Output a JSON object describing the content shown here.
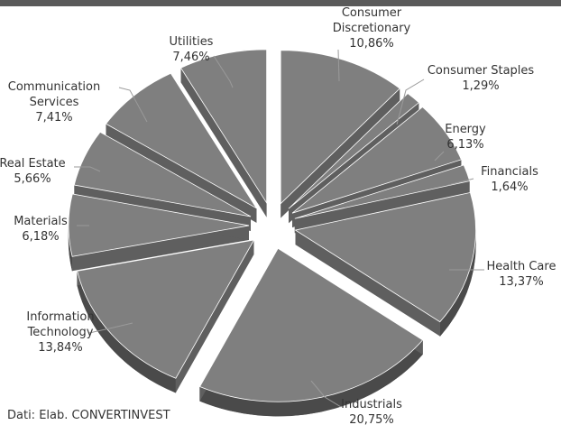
{
  "chart_data": {
    "type": "pie",
    "title": "",
    "decimal_separator": ",",
    "slices": [
      {
        "label": "Consumer Discretionary",
        "value": 10.86,
        "display": "10,86%",
        "label_lines": [
          "Consumer",
          "Discretionary"
        ]
      },
      {
        "label": "Consumer Staples",
        "value": 1.29,
        "display": "1,29%",
        "label_lines": [
          "Consumer Staples"
        ]
      },
      {
        "label": "Energy",
        "value": 6.13,
        "display": "6,13%",
        "label_lines": [
          "Energy"
        ]
      },
      {
        "label": "Financials",
        "value": 1.64,
        "display": "1,64%",
        "label_lines": [
          "Financials"
        ]
      },
      {
        "label": "Health Care",
        "value": 13.37,
        "display": "13,37%",
        "label_lines": [
          "Health Care"
        ]
      },
      {
        "label": "Industrials",
        "value": 20.75,
        "display": "20,75%",
        "label_lines": [
          "Industrials"
        ]
      },
      {
        "label": "Information Technology",
        "value": 13.84,
        "display": "13,84%",
        "label_lines": [
          "Information",
          "Technology"
        ]
      },
      {
        "label": "Materials",
        "value": 6.18,
        "display": "6,18%",
        "label_lines": [
          "Materials"
        ]
      },
      {
        "label": "Real Estate",
        "value": 5.66,
        "display": "5,66%",
        "label_lines": [
          "Real Estate"
        ]
      },
      {
        "label": "Communication Services",
        "value": 7.41,
        "display": "7,41%",
        "label_lines": [
          "Communication",
          "Services"
        ]
      },
      {
        "label": "Utilities",
        "value": 7.46,
        "display": "7,46%",
        "label_lines": [
          "Utilities"
        ]
      }
    ],
    "colors": {
      "top": "#7f7f7f",
      "side": "#4a4a4a",
      "edge": "#ffffff"
    }
  },
  "footer": {
    "source": "Dati: Elab. CONVERTINVEST"
  }
}
